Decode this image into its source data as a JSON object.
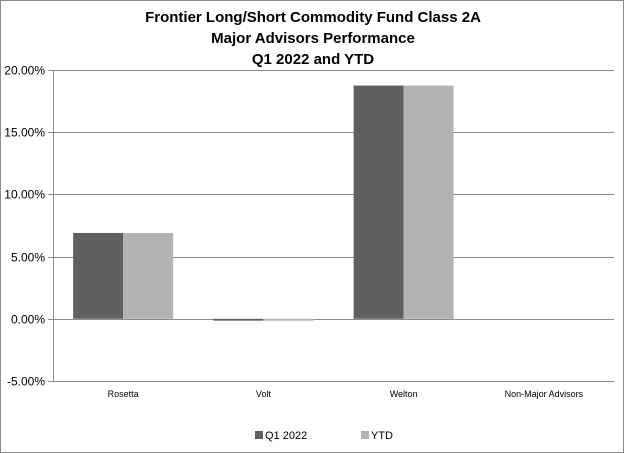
{
  "chart_data": {
    "type": "bar",
    "title_lines": [
      "Frontier Long/Short Commodity Fund Class 2A",
      "Major Advisors Performance",
      "Q1 2022 and YTD"
    ],
    "categories": [
      "Rosetta",
      "Volt",
      "Welton",
      "Non-Major Advisors"
    ],
    "series": [
      {
        "name": "Q1 2022",
        "values": [
          6.9,
          -0.15,
          18.75,
          0
        ],
        "color": "#606060"
      },
      {
        "name": "YTD",
        "values": [
          6.9,
          -0.15,
          18.75,
          0
        ],
        "color": "#b3b3b3"
      }
    ],
    "ylim": [
      -5,
      20
    ],
    "yticks": [
      {
        "value": 20,
        "label": "20.00%"
      },
      {
        "value": 15,
        "label": "15.00%"
      },
      {
        "value": 10,
        "label": "10.00%"
      },
      {
        "value": 5,
        "label": "5.00%"
      },
      {
        "value": 0,
        "label": "0.00%"
      },
      {
        "value": -5,
        "label": "-5.00%"
      }
    ],
    "grid": true,
    "legend_position": "bottom",
    "gridline_color": "#8c8c8c"
  }
}
